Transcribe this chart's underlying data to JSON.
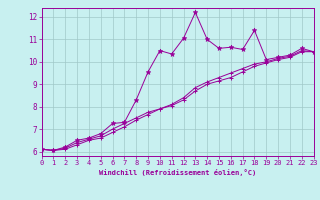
{
  "xlabel": "Windchill (Refroidissement éolien,°C)",
  "bg_color": "#c8f0f0",
  "line_color": "#990099",
  "grid_color": "#a0c8c8",
  "x_ticks": [
    0,
    1,
    2,
    3,
    4,
    5,
    6,
    7,
    8,
    9,
    10,
    11,
    12,
    13,
    14,
    15,
    16,
    17,
    18,
    19,
    20,
    21,
    22,
    23
  ],
  "y_ticks": [
    6,
    7,
    8,
    9,
    10,
    11,
    12
  ],
  "xlim": [
    0,
    23
  ],
  "ylim": [
    5.8,
    12.4
  ],
  "series1_x": [
    0,
    1,
    2,
    3,
    4,
    5,
    6,
    7,
    8,
    9,
    10,
    11,
    12,
    13,
    14,
    15,
    16,
    17,
    18,
    19,
    20,
    21,
    22,
    23
  ],
  "series1_y": [
    6.1,
    6.05,
    6.2,
    6.5,
    6.6,
    6.8,
    7.25,
    7.3,
    8.3,
    9.55,
    10.5,
    10.35,
    11.05,
    12.2,
    11.0,
    10.6,
    10.65,
    10.55,
    11.4,
    10.1,
    10.2,
    10.3,
    10.6,
    10.45
  ],
  "series2_x": [
    0,
    1,
    2,
    3,
    4,
    5,
    6,
    7,
    8,
    9,
    10,
    11,
    12,
    13,
    14,
    15,
    16,
    17,
    18,
    19,
    20,
    21,
    22,
    23
  ],
  "series2_y": [
    6.1,
    6.05,
    6.15,
    6.4,
    6.55,
    6.7,
    7.0,
    7.25,
    7.5,
    7.75,
    7.9,
    8.05,
    8.3,
    8.7,
    9.0,
    9.15,
    9.3,
    9.55,
    9.8,
    9.95,
    10.1,
    10.2,
    10.45,
    10.45
  ],
  "series3_x": [
    0,
    1,
    2,
    3,
    4,
    5,
    6,
    7,
    8,
    9,
    10,
    11,
    12,
    13,
    14,
    15,
    16,
    17,
    18,
    19,
    20,
    21,
    22,
    23
  ],
  "series3_y": [
    6.1,
    6.05,
    6.1,
    6.3,
    6.5,
    6.6,
    6.85,
    7.1,
    7.4,
    7.65,
    7.9,
    8.1,
    8.4,
    8.85,
    9.1,
    9.3,
    9.5,
    9.7,
    9.9,
    10.0,
    10.15,
    10.25,
    10.5,
    10.45
  ],
  "xlabel_fontsize": 5.0,
  "tick_fontsize": 5.0,
  "ytick_fontsize": 5.5
}
